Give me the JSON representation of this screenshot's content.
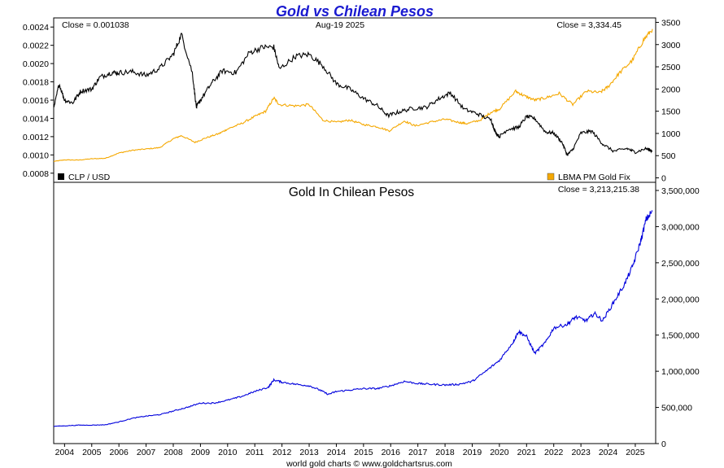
{
  "chart_data": [
    {
      "type": "line",
      "panel": "top",
      "title": "Gold vs Chilean Pesos",
      "date_label": "Aug-19 2025",
      "left_axis": {
        "ticks": [
          "0.0008",
          "0.0010",
          "0.0012",
          "0.0014",
          "0.0016",
          "0.0018",
          "0.0020",
          "0.0022",
          "0.0024"
        ],
        "range": [
          0.0007,
          0.0025
        ]
      },
      "right_axis": {
        "ticks": [
          "0",
          "500",
          "1000",
          "1500",
          "2000",
          "2500",
          "3000",
          "3500"
        ],
        "range": [
          -100,
          3600
        ]
      },
      "legend_placement": "bottom",
      "series": [
        {
          "name": "CLP / USD",
          "axis": "left",
          "color": "#000000",
          "close_label": "Close = 0.001038",
          "x": [
            2003.6,
            2003.8,
            2004.0,
            2004.3,
            2004.6,
            2005.0,
            2005.3,
            2005.7,
            2006.0,
            2006.5,
            2007.0,
            2007.5,
            2008.0,
            2008.3,
            2008.7,
            2008.85,
            2009.0,
            2009.4,
            2009.8,
            2010.3,
            2010.8,
            2011.3,
            2011.7,
            2011.9,
            2012.5,
            2013.0,
            2013.5,
            2014.0,
            2014.5,
            2015.0,
            2015.5,
            2015.9,
            2016.3,
            2016.8,
            2017.3,
            2017.8,
            2018.2,
            2018.7,
            2019.2,
            2019.7,
            2019.85,
            2020.0,
            2020.3,
            2020.7,
            2021.0,
            2021.3,
            2021.7,
            2022.0,
            2022.3,
            2022.5,
            2022.7,
            2023.0,
            2023.4,
            2023.8,
            2024.2,
            2024.7,
            2025.0,
            2025.4,
            2025.63
          ],
          "values": [
            0.0015,
            0.00178,
            0.0016,
            0.00157,
            0.0017,
            0.00172,
            0.00185,
            0.0019,
            0.0019,
            0.00191,
            0.00187,
            0.00195,
            0.0021,
            0.00232,
            0.0019,
            0.00152,
            0.0016,
            0.00178,
            0.00192,
            0.0019,
            0.00212,
            0.00218,
            0.00218,
            0.00194,
            0.00208,
            0.0021,
            0.00198,
            0.00178,
            0.00172,
            0.00162,
            0.00154,
            0.00143,
            0.00147,
            0.00151,
            0.00152,
            0.00162,
            0.00168,
            0.0015,
            0.00145,
            0.00138,
            0.00125,
            0.0012,
            0.00128,
            0.0013,
            0.00142,
            0.0014,
            0.00125,
            0.00124,
            0.00114,
            0.001,
            0.00106,
            0.00124,
            0.00126,
            0.00112,
            0.00104,
            0.00107,
            0.00103,
            0.00107,
            0.00104
          ]
        },
        {
          "name": "LBMA PM Gold Fix",
          "axis": "right",
          "color": "#f5a800",
          "close_label": "Close = 3,334.45",
          "x": [
            2003.6,
            2004.0,
            2004.5,
            2005.0,
            2005.5,
            2006.0,
            2006.5,
            2007.0,
            2007.5,
            2008.0,
            2008.3,
            2008.8,
            2009.2,
            2009.7,
            2010.0,
            2010.5,
            2011.0,
            2011.4,
            2011.7,
            2011.9,
            2012.5,
            2013.0,
            2013.5,
            2014.0,
            2014.5,
            2015.0,
            2015.5,
            2015.95,
            2016.5,
            2016.9,
            2017.5,
            2018.0,
            2018.5,
            2018.8,
            2019.3,
            2019.7,
            2020.0,
            2020.6,
            2020.9,
            2021.3,
            2021.7,
            2022.2,
            2022.7,
            2023.2,
            2023.7,
            2024.0,
            2024.4,
            2024.9,
            2025.3,
            2025.63
          ],
          "values": [
            370,
            405,
            400,
            430,
            440,
            560,
            620,
            650,
            680,
            880,
            950,
            800,
            900,
            1000,
            1100,
            1220,
            1380,
            1500,
            1800,
            1650,
            1620,
            1650,
            1300,
            1250,
            1300,
            1200,
            1150,
            1060,
            1280,
            1170,
            1260,
            1320,
            1250,
            1220,
            1300,
            1480,
            1550,
            1950,
            1850,
            1750,
            1800,
            1900,
            1650,
            1950,
            1920,
            2050,
            2350,
            2650,
            3100,
            3350
          ]
        }
      ]
    },
    {
      "type": "line",
      "panel": "bottom",
      "title": "Gold In Chilean Pesos",
      "close_label": "Close = 3,213,215.38",
      "y_ticks": [
        "0",
        "500,000",
        "1,000,000",
        "1,500,000",
        "2,000,000",
        "2,500,000",
        "3,000,000",
        "3,500,000"
      ],
      "ylim": [
        0,
        3500000
      ],
      "x_ticks": [
        "2004",
        "2005",
        "2006",
        "2007",
        "2008",
        "2009",
        "2010",
        "2011",
        "2012",
        "2013",
        "2014",
        "2015",
        "2016",
        "2017",
        "2018",
        "2019",
        "2020",
        "2021",
        "2022",
        "2023",
        "2024",
        "2025"
      ],
      "xlim": [
        2003.6,
        2025.75
      ],
      "series": [
        {
          "color": "#0000dd",
          "x": [
            2003.6,
            2004.0,
            2004.5,
            2005.0,
            2005.5,
            2006.0,
            2006.5,
            2007.0,
            2007.5,
            2008.0,
            2008.5,
            2009.0,
            2009.5,
            2010.0,
            2010.5,
            2011.0,
            2011.5,
            2011.7,
            2012.0,
            2012.5,
            2013.0,
            2013.4,
            2013.7,
            2014.0,
            2014.5,
            2015.0,
            2015.5,
            2016.0,
            2016.5,
            2017.0,
            2017.5,
            2018.0,
            2018.5,
            2019.0,
            2019.5,
            2020.0,
            2020.5,
            2020.7,
            2021.0,
            2021.3,
            2021.7,
            2022.0,
            2022.5,
            2022.8,
            2023.2,
            2023.5,
            2023.8,
            2024.2,
            2024.6,
            2024.9,
            2025.2,
            2025.4,
            2025.63
          ],
          "values": [
            240000,
            245000,
            255000,
            255000,
            260000,
            300000,
            350000,
            380000,
            400000,
            450000,
            500000,
            560000,
            560000,
            600000,
            650000,
            720000,
            780000,
            880000,
            850000,
            820000,
            800000,
            740000,
            680000,
            720000,
            740000,
            760000,
            760000,
            800000,
            860000,
            830000,
            820000,
            810000,
            820000,
            860000,
            1000000,
            1150000,
            1400000,
            1550000,
            1480000,
            1250000,
            1400000,
            1600000,
            1650000,
            1750000,
            1700000,
            1800000,
            1700000,
            1950000,
            2200000,
            2450000,
            2800000,
            3100000,
            3213215
          ]
        }
      ]
    }
  ],
  "footer": "world gold charts © www.goldchartsrus.com"
}
